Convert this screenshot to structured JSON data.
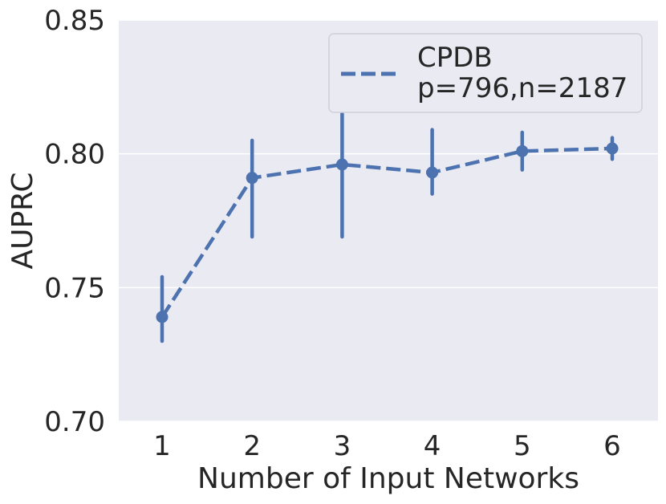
{
  "chart_data": {
    "type": "line",
    "xlabel": "Number of Input Networks",
    "ylabel": "AUPRC",
    "categories": [
      "1",
      "2",
      "3",
      "4",
      "5",
      "6"
    ],
    "yticks": [
      "0.70",
      "0.75",
      "0.80",
      "0.85"
    ],
    "ylim": [
      0.7,
      0.85
    ],
    "grid": true,
    "legend_position": "top-right",
    "series": [
      {
        "name": "CPDB",
        "name_line2": "p=796,n=2187",
        "color": "#4c72b0",
        "line_style": "dashed",
        "values": [
          0.739,
          0.791,
          0.796,
          0.793,
          0.801,
          0.802
        ],
        "error_low": [
          0.73,
          0.769,
          0.769,
          0.785,
          0.794,
          0.798
        ],
        "error_high": [
          0.754,
          0.805,
          0.815,
          0.809,
          0.808,
          0.806
        ]
      }
    ]
  }
}
